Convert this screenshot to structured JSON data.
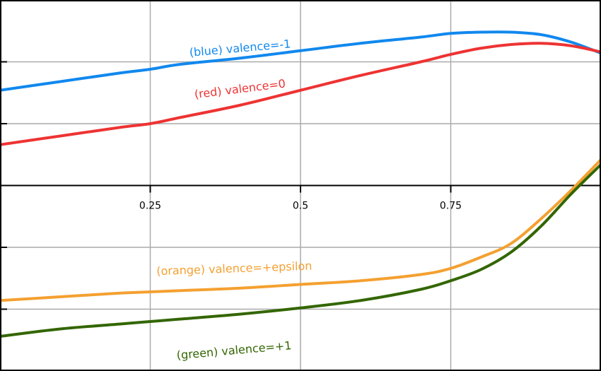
{
  "chart_data": {
    "type": "line",
    "title": "",
    "xlabel": "",
    "ylabel": "",
    "xlim": [
      0,
      1
    ],
    "ylim": [
      -1.5,
      1.5
    ],
    "grid": true,
    "colors": {
      "background": "#ffffff",
      "grid": "#aaaaaa",
      "axis": "#000000",
      "frame": "#000000"
    },
    "xticks": [
      0.25,
      0.5,
      0.75
    ],
    "x_tick_labels": [
      "0.25",
      "0.5",
      "0.75"
    ],
    "yticks": [
      -1,
      -0.5,
      0.5,
      1
    ],
    "series": [
      {
        "name": "(blue) valence=-1",
        "color": "#1188ee",
        "x": [
          0,
          0.1,
          0.2,
          0.25,
          0.3,
          0.4,
          0.5,
          0.6,
          0.7,
          0.75,
          0.8,
          0.85,
          0.9,
          0.95,
          1.0
        ],
        "y": [
          0.77,
          0.84,
          0.91,
          0.94,
          0.98,
          1.03,
          1.09,
          1.15,
          1.2,
          1.23,
          1.24,
          1.24,
          1.22,
          1.16,
          1.07
        ]
      },
      {
        "name": "(red) valence=0",
        "color": "#ee3333",
        "x": [
          0,
          0.1,
          0.2,
          0.25,
          0.3,
          0.4,
          0.5,
          0.6,
          0.7,
          0.75,
          0.8,
          0.85,
          0.9,
          0.95,
          1.0
        ],
        "y": [
          0.33,
          0.4,
          0.47,
          0.5,
          0.55,
          0.65,
          0.77,
          0.89,
          1.0,
          1.06,
          1.11,
          1.14,
          1.15,
          1.13,
          1.08
        ]
      },
      {
        "name": "(orange) valence=+epsilon",
        "color": "#f4a030",
        "x": [
          0,
          0.1,
          0.2,
          0.25,
          0.3,
          0.4,
          0.5,
          0.6,
          0.7,
          0.75,
          0.8,
          0.85,
          0.9,
          0.95,
          1.0
        ],
        "y": [
          -0.93,
          -0.9,
          -0.87,
          -0.86,
          -0.85,
          -0.83,
          -0.8,
          -0.77,
          -0.72,
          -0.67,
          -0.58,
          -0.47,
          -0.27,
          -0.04,
          0.21
        ]
      },
      {
        "name": "(green) valence=+1",
        "color": "#336600",
        "x": [
          0,
          0.1,
          0.2,
          0.25,
          0.3,
          0.4,
          0.5,
          0.6,
          0.7,
          0.75,
          0.8,
          0.85,
          0.9,
          0.95,
          1.0
        ],
        "y": [
          -1.22,
          -1.16,
          -1.12,
          -1.1,
          -1.08,
          -1.04,
          -0.99,
          -0.93,
          -0.84,
          -0.77,
          -0.68,
          -0.54,
          -0.33,
          -0.07,
          0.17
        ]
      }
    ]
  }
}
